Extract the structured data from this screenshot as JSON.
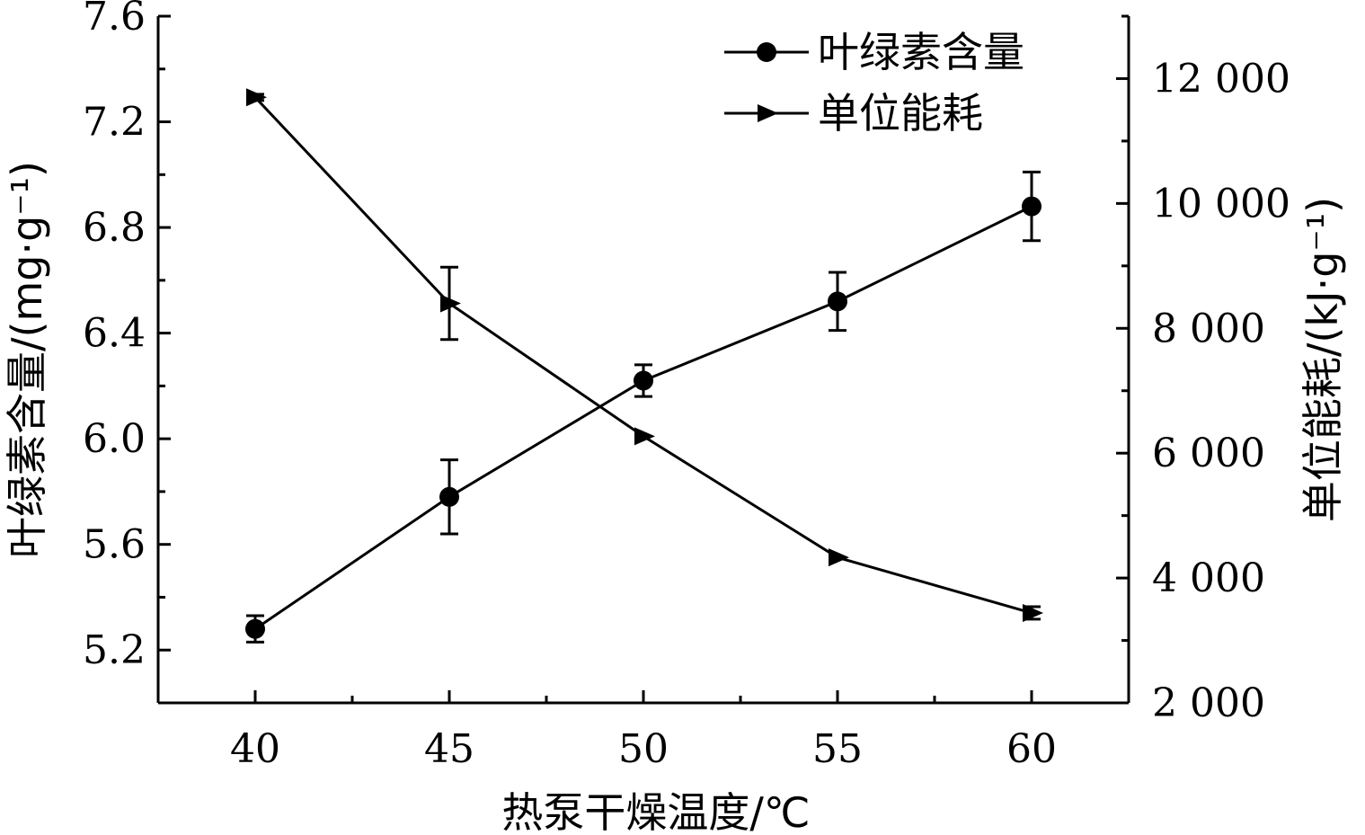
{
  "chart_data": {
    "type": "line",
    "xlabel": "热泵干燥温度/℃",
    "ylabel_left": "叶绿素含量/(mg·g⁻¹)",
    "ylabel_right": "单位能耗/(kJ·g⁻¹)",
    "x": [
      40,
      45,
      50,
      55,
      60
    ],
    "x_ticks": [
      "40",
      "45",
      "50",
      "55",
      "60"
    ],
    "xlim": [
      37.5,
      62.5
    ],
    "ylim_left": [
      5.0,
      7.6
    ],
    "ylim_right": [
      2000,
      13000
    ],
    "y_left_ticks": [
      "5.2",
      "5.6",
      "6.0",
      "6.4",
      "6.8",
      "7.2",
      "7.6"
    ],
    "y_right_ticks": [
      "2 000",
      "4 000",
      "6 000",
      "8 000",
      "10 000",
      "12 000"
    ],
    "legend_position": "top-right",
    "grid": false,
    "series": [
      {
        "name": "叶绿素含量",
        "axis": "left",
        "marker": "circle",
        "values": [
          5.28,
          5.78,
          6.22,
          6.52,
          6.88
        ],
        "errors": [
          0.05,
          0.14,
          0.06,
          0.11,
          0.13
        ]
      },
      {
        "name": "单位能耗",
        "axis": "right",
        "marker": "triangle-right",
        "values": [
          11700,
          8400,
          6270,
          4330,
          3440
        ],
        "errors": [
          50,
          580,
          0,
          0,
          100
        ]
      }
    ]
  }
}
